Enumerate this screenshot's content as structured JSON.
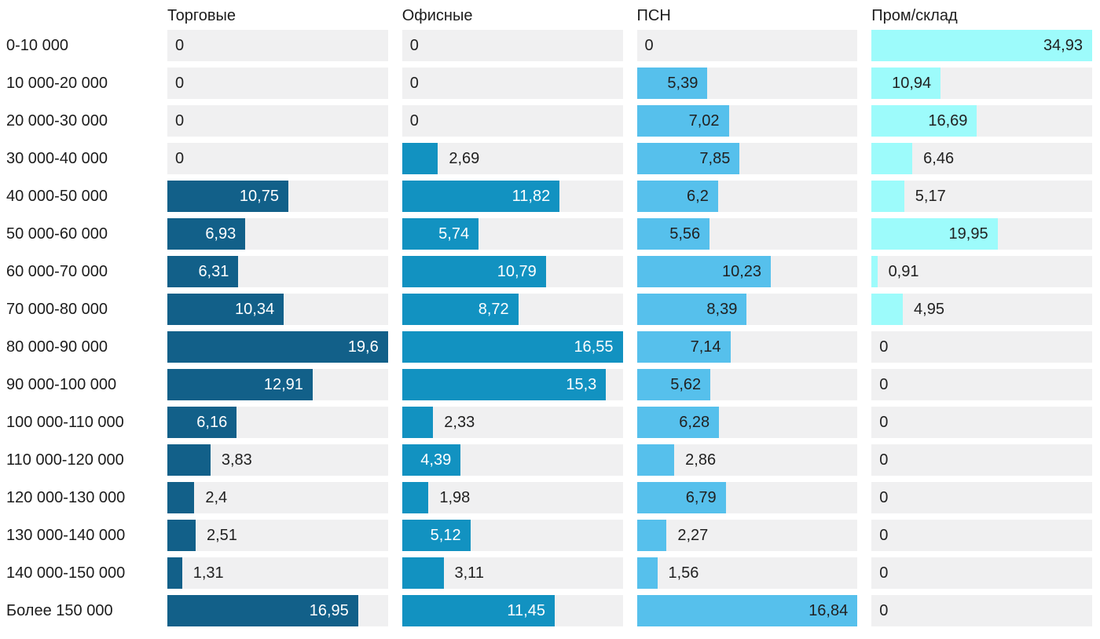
{
  "chart_data": {
    "type": "bar",
    "orientation": "horizontal",
    "title": "",
    "value_format": "decimal-comma",
    "track_color": "#f0f0f1",
    "text_color": "#212121",
    "categories": [
      "0-10 000",
      "10 000-20 000",
      "20 000-30 000",
      "30 000-40 000",
      "40 000-50 000",
      "50 000-60 000",
      "60 000-70 000",
      "70 000-80 000",
      "80 000-90 000",
      "90 000-100 000",
      "100 000-110 000",
      "110 000-120 000",
      "120 000-130 000",
      "130 000-140 000",
      "140 000-150 000",
      "Более 150 000"
    ],
    "series": [
      {
        "name": "Торговые",
        "color": "#126089",
        "label_inside_color": "#ffffff",
        "values": [
          0,
          0,
          0,
          0,
          10.75,
          6.93,
          6.31,
          10.34,
          19.6,
          12.91,
          6.16,
          3.83,
          2.4,
          2.51,
          1.31,
          16.95
        ],
        "labels": [
          "0",
          "0",
          "0",
          "0",
          "10,75",
          "6,93",
          "6,31",
          "10,34",
          "19,6",
          "12,91",
          "6,16",
          "3,83",
          "2,4",
          "2,51",
          "1,31",
          "16,95"
        ]
      },
      {
        "name": "Офисные",
        "color": "#1292c1",
        "label_inside_color": "#ffffff",
        "values": [
          0,
          0,
          0,
          2.69,
          11.82,
          5.74,
          10.79,
          8.72,
          16.55,
          15.3,
          2.33,
          4.39,
          1.98,
          5.12,
          3.11,
          11.45
        ],
        "labels": [
          "0",
          "0",
          "0",
          "2,69",
          "11,82",
          "5,74",
          "10,79",
          "8,72",
          "16,55",
          "15,3",
          "2,33",
          "4,39",
          "1,98",
          "5,12",
          "3,11",
          "11,45"
        ]
      },
      {
        "name": "ПСН",
        "color": "#56c0ec",
        "label_inside_color": "#212121",
        "values": [
          0,
          5.39,
          7.02,
          7.85,
          6.2,
          5.56,
          10.23,
          8.39,
          7.14,
          5.62,
          6.28,
          2.86,
          6.79,
          2.27,
          1.56,
          16.84
        ],
        "labels": [
          "0",
          "5,39",
          "7,02",
          "7,85",
          "6,2",
          "5,56",
          "10,23",
          "8,39",
          "7,14",
          "5,62",
          "6,28",
          "2,86",
          "6,79",
          "2,27",
          "1,56",
          "16,84"
        ]
      },
      {
        "name": "Пром/склад",
        "color": "#9dfbfb",
        "label_inside_color": "#212121",
        "values": [
          34.93,
          10.94,
          16.69,
          6.46,
          5.17,
          19.95,
          0.91,
          4.95,
          0,
          0,
          0,
          0,
          0,
          0,
          0,
          0
        ],
        "labels": [
          "34,93",
          "10,94",
          "16,69",
          "6,46",
          "5,17",
          "19,95",
          "0,91",
          "4,95",
          "0",
          "0",
          "0",
          "0",
          "0",
          "0",
          "0",
          "0"
        ]
      }
    ]
  }
}
